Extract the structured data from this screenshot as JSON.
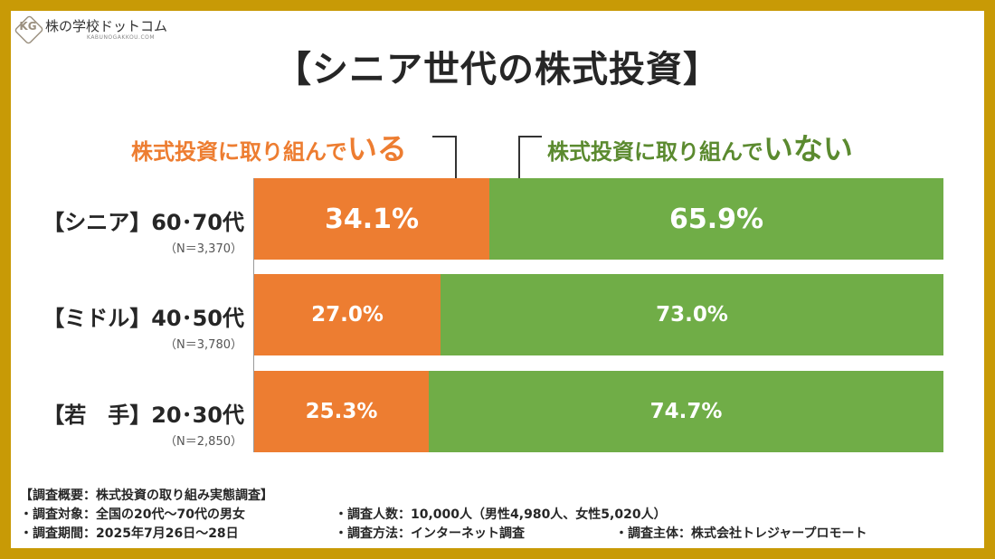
{
  "logo": {
    "mark": "KG",
    "name": "株の学校ドットコム",
    "url": "KABUNOGAKKOU.COM"
  },
  "title": "【シニア世代の株式投資】",
  "legend": {
    "doing_prefix": "株式投資に取り組んで",
    "doing_emph": "いる",
    "not_prefix": "株式投資に取り組んで",
    "not_emph": "いない"
  },
  "colors": {
    "doing": "#ED7D31",
    "not": "#70AD47",
    "border": "#C89A06"
  },
  "chart_data": {
    "type": "bar",
    "orientation": "horizontal",
    "stacked": true,
    "title": "【シニア世代の株式投資】",
    "categories": [
      "【シニア】60･70代",
      "【ミドル】40･50代",
      "【若　手】20･30代"
    ],
    "sample_sizes": [
      "（N＝3,370）",
      "（N＝3,780）",
      "（N＝2,850）"
    ],
    "series": [
      {
        "name": "株式投資に取り組んでいる",
        "values": [
          34.1,
          27.0,
          25.3
        ],
        "labels": [
          "34.1%",
          "27.0%",
          "25.3%"
        ]
      },
      {
        "name": "株式投資に取り組んでいない",
        "values": [
          65.9,
          73.0,
          74.7
        ],
        "labels": [
          "65.9%",
          "73.0%",
          "74.7%"
        ]
      }
    ],
    "xlim": [
      0,
      100
    ],
    "unit": "%"
  },
  "footer": {
    "summary": "【調査概要：株式投資の取り組み実態調査】",
    "target": "・調査対象：全国の20代～70代の男女",
    "count": "・調査人数：10,000人（男性4,980人、女性5,020人）",
    "period": "・調査期間：2025年7月26日～28日",
    "method": "・調査方法：インターネット調査",
    "org": "・調査主体：株式会社トレジャープロモート"
  }
}
